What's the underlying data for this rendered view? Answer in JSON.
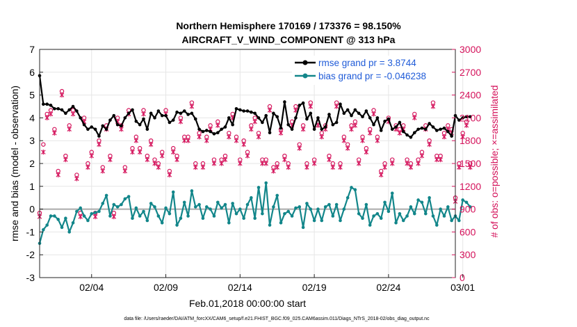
{
  "chart_data": {
    "type": "line",
    "title": "Northern Hemisphere 170169 / 173376 = 98.150%",
    "subtitle": "AIRCRAFT_V_WIND_COMPONENT @ 313 hPa",
    "xlabel": "Feb.01,2018 00:00:00 start",
    "ylabel_left": "rmse and bias (model - observation)",
    "ylabel_right": "# of obs: o=possible; ×=assimilated",
    "ylim_left": [
      -3,
      7
    ],
    "ylim_right": [
      0,
      3000
    ],
    "xlim": [
      0,
      112
    ],
    "x_tick_labels": [
      "02/04",
      "02/09",
      "02/14",
      "02/19",
      "02/24",
      "03/01"
    ],
    "x_tick_values": [
      14,
      34,
      54,
      74,
      94,
      114
    ],
    "y_left_ticks": [
      "-3",
      "-2",
      "-1",
      "0",
      "1",
      "2",
      "3",
      "4",
      "5",
      "6",
      "7"
    ],
    "y_right_ticks": [
      "0",
      "300",
      "600",
      "900",
      "1200",
      "1500",
      "1800",
      "2100",
      "2400",
      "2700",
      "3000"
    ],
    "grid": true,
    "legend_position": "top-right",
    "colors": {
      "rmse": "#000000",
      "bias": "#12868a",
      "counts": "#d4115a",
      "zero": "#aaaaaa",
      "legend_text": "#1f5bd8"
    },
    "series": [
      {
        "name": "rmse grand pr = 3.8744",
        "axis": "left",
        "values": [
          5.85,
          4.6,
          4.6,
          4.55,
          4.4,
          4.4,
          4.35,
          4.2,
          4.35,
          4.5,
          4.3,
          4.0,
          3.7,
          3.5,
          3.6,
          3.5,
          3.2,
          3.65,
          3.5,
          3.9,
          4.1,
          3.7,
          3.65,
          4.0,
          4.2,
          4.35,
          3.85,
          3.7,
          3.95,
          3.5,
          4.2,
          4.0,
          4.3,
          4.1,
          4.1,
          3.8,
          3.9,
          4.25,
          4.2,
          4.3,
          4.15,
          4.2,
          3.95,
          3.5,
          3.4,
          3.45,
          3.4,
          3.3,
          3.35,
          3.5,
          3.6,
          4.0,
          3.7,
          4.4,
          4.35,
          4.3,
          4.3,
          4.25,
          4.2,
          4.0,
          3.8,
          4.1,
          3.35,
          4.2,
          4.05,
          3.55,
          4.7,
          3.7,
          3.5,
          4.0,
          4.55,
          4.65,
          3.95,
          4.2,
          3.5,
          4.0,
          3.5,
          3.6,
          4.15,
          3.7,
          3.8,
          4.6,
          4.2,
          4.35,
          4.1,
          4.35,
          4.2,
          4.05,
          4.3,
          4.0,
          3.7,
          4.0,
          3.45,
          3.85,
          3.95,
          3.5,
          3.6,
          3.8,
          3.4,
          3.25,
          3.15,
          3.35,
          3.5,
          3.55,
          3.5,
          3.75,
          3.6,
          3.45,
          3.5,
          3.55,
          3.4,
          3.2,
          4.1,
          3.9,
          4.0,
          4.05,
          4.05
        ]
      },
      {
        "name": "bias grand pr = -0.046238",
        "axis": "left",
        "values": [
          -1.5,
          -0.9,
          -0.7,
          -0.3,
          -0.3,
          -0.45,
          -0.8,
          -0.4,
          -1.0,
          -0.6,
          -0.1,
          0.05,
          -0.3,
          -0.5,
          -0.2,
          -0.15,
          -0.1,
          0.25,
          0.6,
          -0.3,
          0.2,
          0.1,
          0.2,
          0.45,
          0.55,
          -0.4,
          0.05,
          -0.3,
          -0.1,
          -0.5,
          0.25,
          0.1,
          -0.3,
          -0.6,
          0.05,
          -0.2,
          0.75,
          -0.7,
          -0.4,
          0.3,
          -0.3,
          0.8,
          0.1,
          0.2,
          -0.4,
          0.1,
          0.0,
          -0.3,
          0.3,
          0.05,
          0.2,
          -0.6,
          0.25,
          -0.2,
          0.0,
          -0.4,
          0.2,
          0.5,
          -0.4,
          0.95,
          -0.2,
          1.15,
          -0.7,
          0.1,
          0.6,
          -0.6,
          -0.2,
          -0.1,
          -0.3,
          0.05,
          0.1,
          -0.8,
          0.25,
          0.0,
          -0.5,
          0.0,
          -0.5,
          0.1,
          0.2,
          -0.3,
          0.2,
          -0.5,
          0.0,
          0.5,
          0.95,
          0.85,
          -0.2,
          -0.4,
          0.2,
          -0.7,
          -0.3,
          -0.2,
          -0.4,
          0.3,
          -0.1,
          0.7,
          -0.6,
          -0.2,
          -0.5,
          -0.3,
          0.1,
          -0.2,
          0.4,
          0.3,
          -0.2,
          0.5,
          -0.3,
          -0.7,
          0.0,
          -0.3,
          0.1,
          -0.5,
          -0.3,
          -0.5,
          0.4,
          0.3,
          0.1
        ]
      },
      {
        "name": "possible obs",
        "axis": "right",
        "values": [
          850,
          1750,
          2150,
          2200,
          1950,
          1400,
          2450,
          1600,
          2000,
          2200,
          1350,
          850,
          2100,
          1500,
          1650,
          850,
          1800,
          1450,
          2000,
          1600,
          850,
          2100,
          2000,
          1450,
          2200,
          1700,
          1850,
          1700,
          2200,
          1600,
          1800,
          1550,
          1500,
          1650,
          2200,
          1400,
          1700,
          1600,
          2100,
          1850,
          1850,
          2300,
          1500,
          1900,
          1500,
          1850,
          2000,
          1550,
          2050,
          1550,
          1600,
          1900,
          2150,
          1850,
          1550,
          1800,
          1650,
          2000,
          2100,
          1900,
          1550,
          1550,
          2250,
          1450,
          1500,
          1950,
          1600,
          1500,
          2050,
          2250,
          1750,
          2000,
          1500,
          2300,
          1550,
          2050,
          1900,
          2000,
          1600,
          1500,
          2300,
          1500,
          1850,
          1750,
          2000,
          2050,
          1550,
          1850,
          1700,
          1950,
          2200,
          1850,
          1400,
          1500,
          2100,
          1550,
          2000,
          1950,
          2000,
          1550,
          1500,
          2150,
          1550,
          1650,
          2000,
          1800,
          2300,
          1600,
          1600,
          1900,
          2000,
          1950,
          1050,
          1500,
          1900,
          2050,
          1500
        ]
      },
      {
        "name": "assimilated obs",
        "axis": "right",
        "values": [
          800,
          1650,
          2100,
          2150,
          1900,
          1350,
          2400,
          1550,
          1950,
          2150,
          1300,
          800,
          2050,
          1450,
          1600,
          800,
          1750,
          1400,
          1950,
          1550,
          800,
          2050,
          1950,
          1400,
          2150,
          1650,
          1800,
          1650,
          2150,
          1550,
          1750,
          1500,
          1450,
          1600,
          2150,
          1350,
          1650,
          1550,
          2050,
          1800,
          1800,
          2250,
          1450,
          1850,
          1450,
          1800,
          1950,
          1500,
          2000,
          1500,
          1550,
          1850,
          2100,
          1800,
          1500,
          1750,
          1600,
          1950,
          2050,
          1850,
          1500,
          1500,
          2200,
          1400,
          1450,
          1900,
          1550,
          1450,
          2000,
          2200,
          1700,
          1950,
          1450,
          2250,
          1500,
          2000,
          1850,
          1950,
          1550,
          1450,
          2250,
          1450,
          1800,
          1700,
          1950,
          2000,
          1500,
          1800,
          1650,
          1900,
          2150,
          1800,
          1350,
          1450,
          2050,
          1500,
          1950,
          1900,
          1950,
          1500,
          1450,
          2100,
          1500,
          1600,
          1950,
          1750,
          2250,
          1550,
          1550,
          1850,
          1950,
          1900,
          1000,
          1450,
          1850,
          2000,
          1450
        ]
      }
    ],
    "footnote": "data file: /Users/raeder/DAI/ATM_forcXX/CAM6_setup/f.e21.FHIST_BGC.f09_025.CAM6assim.011/Diags_NTrS_2018-02/obs_diag_output.nc"
  }
}
